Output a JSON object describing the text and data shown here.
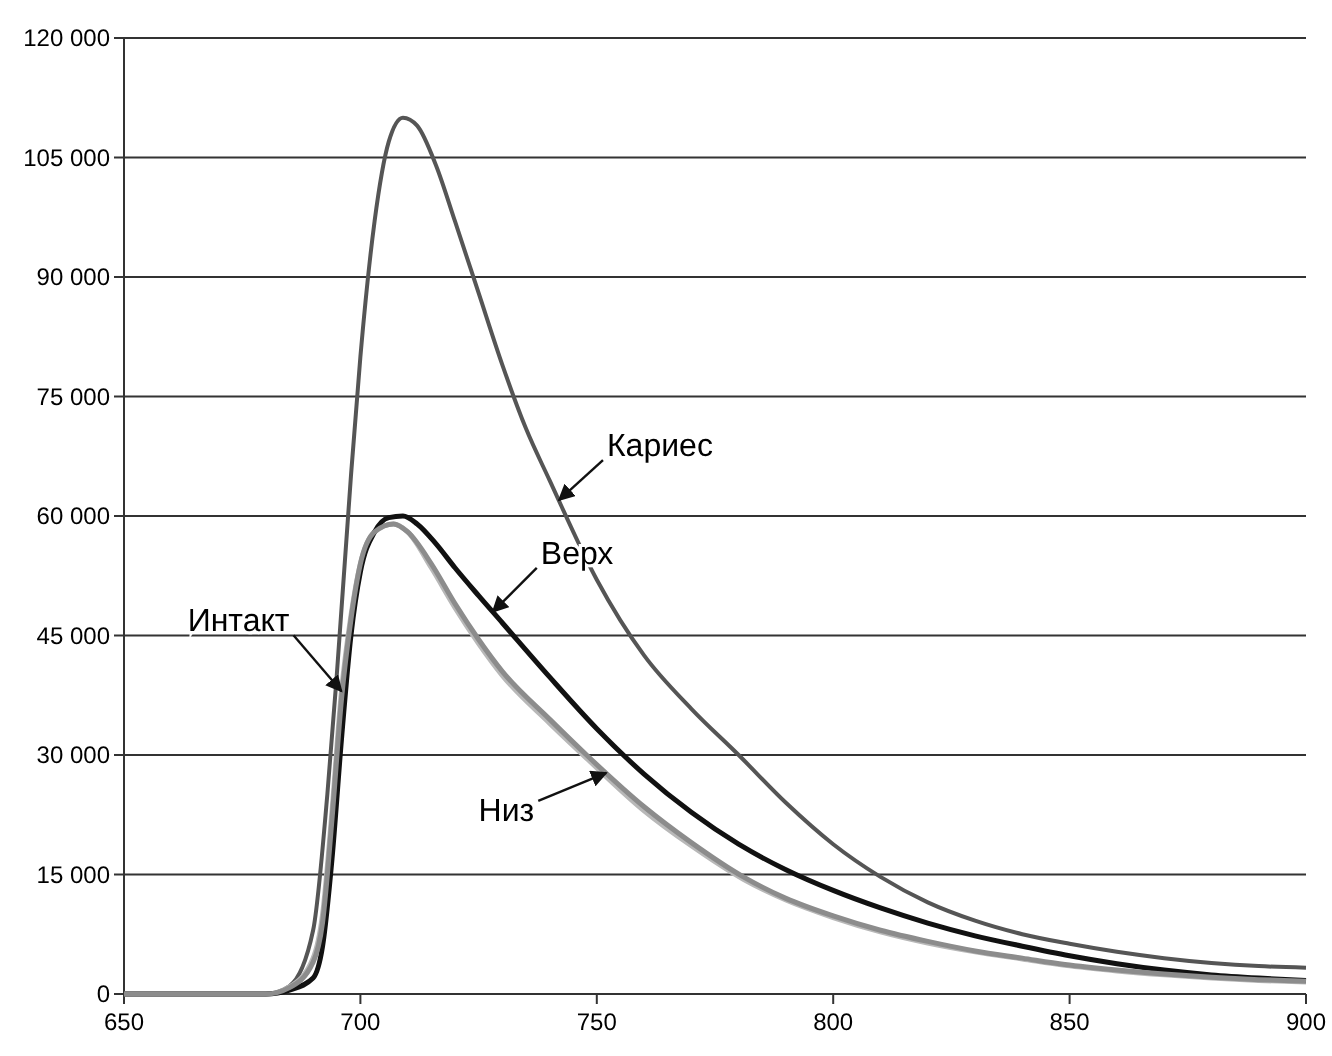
{
  "chart_data": {
    "type": "line",
    "series": [
      {
        "name": "Кариес",
        "color": "#555555",
        "x": [
          650,
          680,
          685,
          690,
          693,
          695,
          698,
          700,
          703,
          706,
          709,
          712,
          716,
          720,
          725,
          730,
          735,
          740,
          750,
          760,
          770,
          780,
          790,
          800,
          810,
          820,
          830,
          840,
          850,
          860,
          870,
          880,
          890,
          900
        ],
        "values": [
          0,
          0,
          1000,
          8000,
          25000,
          40000,
          65000,
          80000,
          97000,
          107000,
          110000,
          109000,
          104000,
          97000,
          88000,
          79000,
          71000,
          64500,
          52000,
          42500,
          35800,
          30000,
          24000,
          18800,
          14700,
          11500,
          9200,
          7500,
          6300,
          5300,
          4500,
          3900,
          3500,
          3300
        ]
      },
      {
        "name": "Интакт",
        "color": "#b8b8b8",
        "x": [
          650,
          680,
          685,
          690,
          692,
          694,
          696,
          698,
          700,
          703,
          707,
          710,
          715,
          720,
          725,
          730,
          740,
          748,
          760,
          770,
          781,
          790,
          800,
          810,
          820,
          830,
          840,
          849,
          860,
          870,
          880,
          890,
          900
        ],
        "values": [
          0,
          0,
          900,
          4500,
          10000,
          23000,
          38000,
          47500,
          54000,
          58000,
          59000,
          58000,
          53500,
          48500,
          44000,
          40000,
          34000,
          29500,
          23000,
          18600,
          14400,
          11800,
          9600,
          7800,
          6400,
          5300,
          4400,
          3600,
          2900,
          2400,
          2000,
          1700,
          1500
        ]
      },
      {
        "name": "Верх",
        "color": "#111111",
        "x": [
          650,
          680,
          685,
          690,
          692,
          694,
          696,
          698,
          700,
          703,
          706,
          709,
          712,
          716,
          720,
          725,
          730,
          740,
          750,
          760,
          770,
          780,
          790,
          800,
          810,
          820,
          830,
          840,
          850,
          860,
          870,
          880,
          890,
          900
        ],
        "values": [
          0,
          0,
          500,
          2000,
          6000,
          17000,
          32000,
          45000,
          53000,
          58000,
          59800,
          60000,
          59000,
          56500,
          53500,
          50000,
          46600,
          39800,
          33300,
          27600,
          22800,
          18800,
          15600,
          13000,
          10800,
          8900,
          7300,
          6000,
          4800,
          3800,
          3000,
          2400,
          2000,
          1700
        ]
      },
      {
        "name": "Низ",
        "color": "#8c8c8c",
        "x": [
          650,
          680,
          685,
          690,
          692,
          694,
          696,
          698,
          700,
          703,
          707,
          710,
          715,
          720,
          725,
          730,
          740,
          748,
          760,
          770,
          781,
          790,
          800,
          810,
          820,
          830,
          840,
          849,
          860,
          870,
          880,
          890,
          900
        ],
        "values": [
          0,
          0,
          800,
          4000,
          9000,
          22000,
          37000,
          47000,
          54000,
          58000,
          59000,
          58000,
          54000,
          49000,
          44500,
          40500,
          34500,
          29900,
          23500,
          19000,
          14700,
          12000,
          9800,
          8000,
          6600,
          5400,
          4500,
          3700,
          3000,
          2500,
          2100,
          1800,
          1600
        ]
      }
    ],
    "xlim": [
      650,
      900
    ],
    "xticks": [
      650,
      700,
      750,
      800,
      850,
      900
    ],
    "ylim": [
      0,
      120000
    ],
    "yticks": [
      {
        "value": 0,
        "label": "0"
      },
      {
        "value": 15000,
        "label": "15 000"
      },
      {
        "value": 30000,
        "label": "30 000"
      },
      {
        "value": 45000,
        "label": "45 000"
      },
      {
        "value": 60000,
        "label": "60 000"
      },
      {
        "value": 75000,
        "label": "75 000"
      },
      {
        "value": 90000,
        "label": "90 000"
      },
      {
        "value": 105000,
        "label": "105 000"
      },
      {
        "value": 120000,
        "label": "120 000"
      }
    ],
    "grid": "y",
    "marker": "none",
    "line_style": "solid"
  }
}
